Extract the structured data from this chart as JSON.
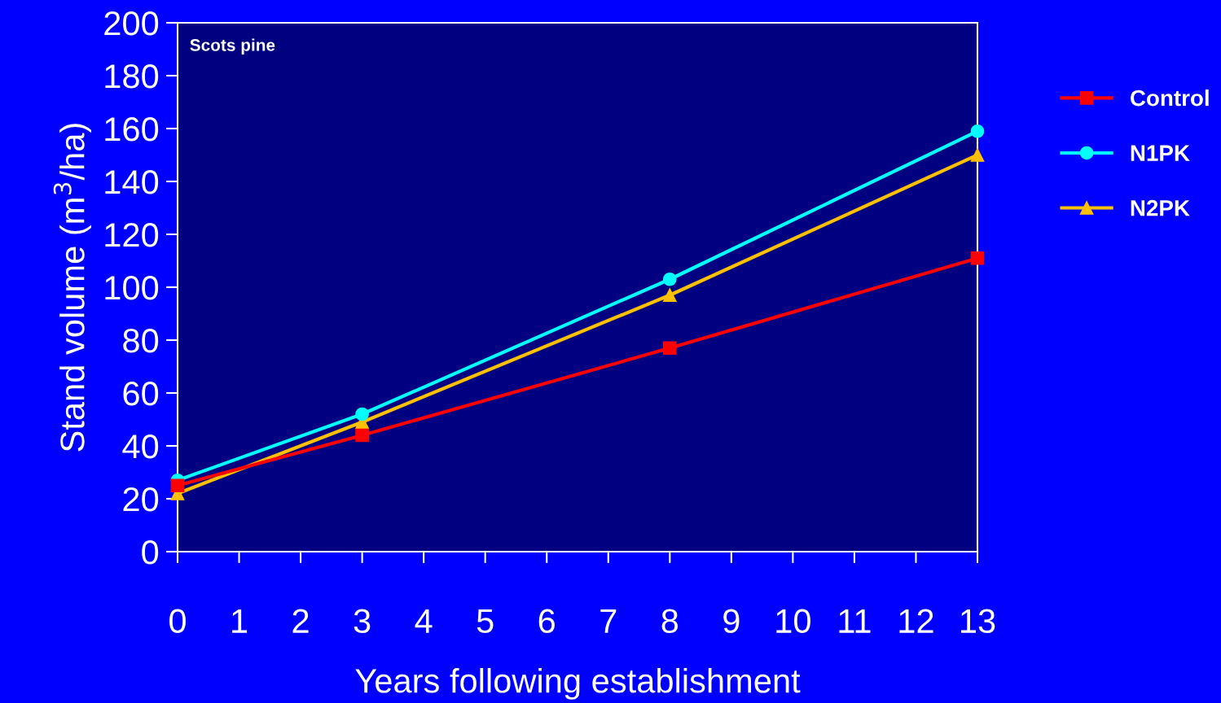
{
  "chart_data": {
    "type": "line",
    "xlabel": "Years following establishment",
    "ylabel": "Stand volume (m$^{3}$/ha)",
    "annotations": [
      "Scots pine"
    ],
    "x": [
      0,
      3,
      8,
      13
    ],
    "series": [
      {
        "name": "Control",
        "color": "#ff0000",
        "marker": "square",
        "values": [
          25,
          44,
          77,
          111
        ]
      },
      {
        "name": "N1PK",
        "color": "#00ffff",
        "marker": "circle",
        "values": [
          27,
          52,
          103,
          159
        ]
      },
      {
        "name": "N2PK",
        "color": "#ffc000",
        "marker": "triangle",
        "values": [
          22,
          49,
          97,
          150
        ]
      }
    ],
    "xlim": [
      0,
      13
    ],
    "xticks": [
      0,
      1,
      2,
      3,
      4,
      5,
      6,
      7,
      8,
      9,
      10,
      11,
      12,
      13
    ],
    "ylim": [
      0,
      200
    ],
    "yticks": [
      0,
      20,
      40,
      60,
      80,
      100,
      120,
      140,
      160,
      180,
      200
    ],
    "grid": false,
    "legend": "right",
    "line_style": "solid"
  }
}
